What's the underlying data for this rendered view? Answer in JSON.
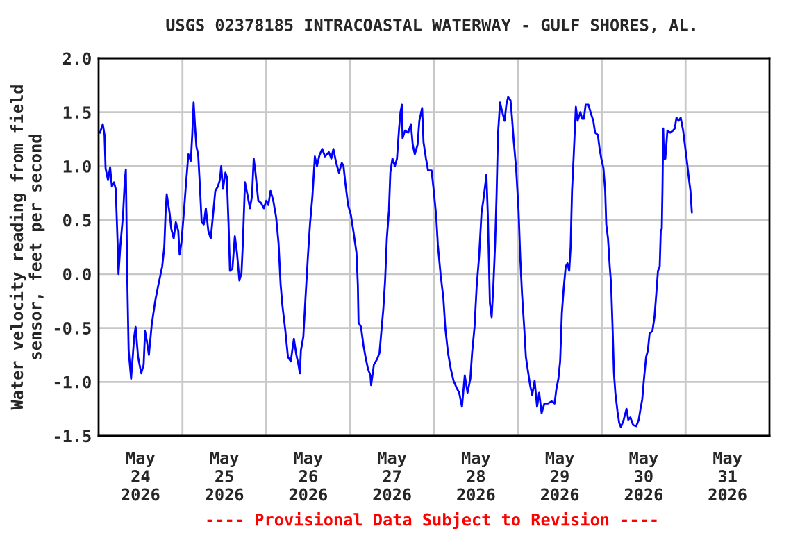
{
  "chart_data": {
    "type": "line",
    "title": "USGS 02378185 INTRACOASTAL WATERWAY - GULF SHORES, AL.",
    "ylabel": "Water velocity reading from field\nsensor, feet per second",
    "annotations": [
      "---- Provisional Data Subject to Revision ----"
    ],
    "xlim": [
      "2026-05-24T00:00",
      "2026-06-01T00:00"
    ],
    "xticks": [
      {
        "value": "2026-05-24T12:00",
        "label": "May\n24\n2026"
      },
      {
        "value": "2026-05-25T12:00",
        "label": "May\n25\n2026"
      },
      {
        "value": "2026-05-26T12:00",
        "label": "May\n26\n2026"
      },
      {
        "value": "2026-05-27T12:00",
        "label": "May\n27\n2026"
      },
      {
        "value": "2026-05-28T12:00",
        "label": "May\n28\n2026"
      },
      {
        "value": "2026-05-29T12:00",
        "label": "May\n29\n2026"
      },
      {
        "value": "2026-05-30T12:00",
        "label": "May\n30\n2026"
      },
      {
        "value": "2026-05-31T12:00",
        "label": "May\n31\n2026"
      },
      {
        "value": "2026-05-25T00:00",
        "label": null
      },
      {
        "value": "2026-05-26T00:00",
        "label": null
      },
      {
        "value": "2026-05-27T00:00",
        "label": null
      },
      {
        "value": "2026-05-28T00:00",
        "label": null
      },
      {
        "value": "2026-05-29T00:00",
        "label": null
      },
      {
        "value": "2026-05-30T00:00",
        "label": null
      },
      {
        "value": "2026-05-31T00:00",
        "label": null
      }
    ],
    "ylim": [
      -1.5,
      2.0
    ],
    "yticks": [
      {
        "value": -1.5,
        "label": "-1.5"
      },
      {
        "value": -1.0,
        "label": "-1.0"
      },
      {
        "value": -0.5,
        "label": "-0.5"
      },
      {
        "value": 0,
        "label": "0.0"
      },
      {
        "value": 0.5,
        "label": "0.5"
      },
      {
        "value": 1.0,
        "label": "1.0"
      },
      {
        "value": 1.5,
        "label": "1.5"
      },
      {
        "value": 2.0,
        "label": "2.0"
      }
    ],
    "grid": true,
    "legend": false,
    "marker": "none",
    "line_style": "solid",
    "series": [
      {
        "color": "#0000ff",
        "x": [
          "2026-05-24T00:24",
          "2026-05-24T01:12",
          "2026-05-24T01:42",
          "2026-05-24T02:00",
          "2026-05-24T02:42",
          "2026-05-24T03:18",
          "2026-05-24T03:48",
          "2026-05-24T04:24",
          "2026-05-24T04:54",
          "2026-05-24T05:24",
          "2026-05-24T05:42",
          "2026-05-24T06:12",
          "2026-05-24T07:00",
          "2026-05-24T07:30",
          "2026-05-24T07:48",
          "2026-05-24T08:12",
          "2026-05-24T08:36",
          "2026-05-24T09:18",
          "2026-05-24T10:12",
          "2026-05-24T10:36",
          "2026-05-24T11:18",
          "2026-05-24T12:12",
          "2026-05-24T12:54",
          "2026-05-24T13:18",
          "2026-05-24T13:54",
          "2026-05-24T14:24",
          "2026-05-24T15:12",
          "2026-05-24T16:12",
          "2026-05-24T17:06",
          "2026-05-24T18:12",
          "2026-05-24T18:48",
          "2026-05-24T19:12",
          "2026-05-24T19:30",
          "2026-05-24T20:18",
          "2026-05-24T20:48",
          "2026-05-24T21:30",
          "2026-05-24T22:06",
          "2026-05-24T22:48",
          "2026-05-24T23:12",
          "2026-05-24T23:42",
          "2026-05-25T00:30",
          "2026-05-25T01:00",
          "2026-05-25T01:42",
          "2026-05-25T02:24",
          "2026-05-25T02:48",
          "2026-05-25T03:12",
          "2026-05-25T03:36",
          "2026-05-25T04:00",
          "2026-05-25T04:30",
          "2026-05-25T05:00",
          "2026-05-25T05:30",
          "2026-05-25T06:06",
          "2026-05-25T06:42",
          "2026-05-25T07:24",
          "2026-05-25T08:06",
          "2026-05-25T08:42",
          "2026-05-25T09:24",
          "2026-05-25T10:06",
          "2026-05-25T10:42",
          "2026-05-25T11:06",
          "2026-05-25T11:36",
          "2026-05-25T12:18",
          "2026-05-25T12:42",
          "2026-05-25T13:12",
          "2026-05-25T13:36",
          "2026-05-25T14:18",
          "2026-05-25T15:00",
          "2026-05-25T15:36",
          "2026-05-25T16:18",
          "2026-05-25T16:54",
          "2026-05-25T17:18",
          "2026-05-25T17:54",
          "2026-05-25T18:42",
          "2026-05-25T19:18",
          "2026-05-25T19:54",
          "2026-05-25T20:24",
          "2026-05-25T20:54",
          "2026-05-25T21:18",
          "2026-05-25T21:42",
          "2026-05-25T22:30",
          "2026-05-25T23:18",
          "2026-05-26T00:00",
          "2026-05-26T00:36",
          "2026-05-26T01:12",
          "2026-05-26T02:00",
          "2026-05-26T02:48",
          "2026-05-26T03:30",
          "2026-05-26T04:06",
          "2026-05-26T04:36",
          "2026-05-26T05:24",
          "2026-05-26T06:12",
          "2026-05-26T07:00",
          "2026-05-26T07:54",
          "2026-05-26T08:36",
          "2026-05-26T09:12",
          "2026-05-26T09:36",
          "2026-05-26T09:54",
          "2026-05-26T10:36",
          "2026-05-26T11:12",
          "2026-05-26T11:54",
          "2026-05-26T12:30",
          "2026-05-26T13:12",
          "2026-05-26T13:54",
          "2026-05-26T14:30",
          "2026-05-26T15:12",
          "2026-05-26T16:00",
          "2026-05-26T16:48",
          "2026-05-26T17:54",
          "2026-05-26T18:36",
          "2026-05-26T19:12",
          "2026-05-26T20:00",
          "2026-05-26T20:48",
          "2026-05-26T21:36",
          "2026-05-26T22:06",
          "2026-05-26T22:36",
          "2026-05-26T23:24",
          "2026-05-27T00:12",
          "2026-05-27T01:00",
          "2026-05-27T01:48",
          "2026-05-27T02:12",
          "2026-05-27T02:24",
          "2026-05-27T03:06",
          "2026-05-27T03:48",
          "2026-05-27T04:24",
          "2026-05-27T05:06",
          "2026-05-27T05:48",
          "2026-05-27T06:00",
          "2026-05-27T06:48",
          "2026-05-27T07:42",
          "2026-05-27T08:24",
          "2026-05-27T08:48",
          "2026-05-27T09:30",
          "2026-05-27T10:00",
          "2026-05-27T10:30",
          "2026-05-27T11:06",
          "2026-05-27T11:30",
          "2026-05-27T12:06",
          "2026-05-27T12:48",
          "2026-05-27T13:24",
          "2026-05-27T14:00",
          "2026-05-27T14:24",
          "2026-05-27T14:48",
          "2026-05-27T15:00",
          "2026-05-27T15:42",
          "2026-05-27T16:36",
          "2026-05-27T17:24",
          "2026-05-27T17:54",
          "2026-05-27T18:30",
          "2026-05-27T19:18",
          "2026-05-27T19:48",
          "2026-05-27T20:36",
          "2026-05-27T21:00",
          "2026-05-27T21:42",
          "2026-05-27T22:18",
          "2026-05-27T23:18",
          "2026-05-27T23:48",
          "2026-05-28T00:36",
          "2026-05-28T01:06",
          "2026-05-28T01:54",
          "2026-05-28T02:42",
          "2026-05-28T03:12",
          "2026-05-28T04:00",
          "2026-05-28T04:48",
          "2026-05-28T05:36",
          "2026-05-28T06:24",
          "2026-05-28T07:12",
          "2026-05-28T08:00",
          "2026-05-28T08:48",
          "2026-05-28T09:36",
          "2026-05-28T10:24",
          "2026-05-28T10:54",
          "2026-05-28T11:36",
          "2026-05-28T12:12",
          "2026-05-28T12:54",
          "2026-05-28T13:36",
          "2026-05-28T14:06",
          "2026-05-28T14:36",
          "2026-05-28T15:00",
          "2026-05-28T15:24",
          "2026-05-28T16:00",
          "2026-05-28T16:30",
          "2026-05-28T17:00",
          "2026-05-28T17:30",
          "2026-05-28T17:54",
          "2026-05-28T18:18",
          "2026-05-28T18:54",
          "2026-05-28T19:24",
          "2026-05-28T20:12",
          "2026-05-28T20:42",
          "2026-05-28T21:12",
          "2026-05-28T21:54",
          "2026-05-28T22:18",
          "2026-05-28T22:48",
          "2026-05-28T23:30",
          "2026-05-29T00:12",
          "2026-05-29T00:42",
          "2026-05-29T01:12",
          "2026-05-29T01:48",
          "2026-05-29T02:18",
          "2026-05-29T02:48",
          "2026-05-29T03:30",
          "2026-05-29T04:06",
          "2026-05-29T04:48",
          "2026-05-29T05:30",
          "2026-05-29T06:06",
          "2026-05-29T06:48",
          "2026-05-29T07:36",
          "2026-05-29T08:36",
          "2026-05-29T09:42",
          "2026-05-29T10:30",
          "2026-05-29T11:00",
          "2026-05-29T11:36",
          "2026-05-29T12:06",
          "2026-05-29T12:36",
          "2026-05-29T13:06",
          "2026-05-29T13:42",
          "2026-05-29T14:12",
          "2026-05-29T14:42",
          "2026-05-29T15:06",
          "2026-05-29T15:30",
          "2026-05-29T16:00",
          "2026-05-29T16:36",
          "2026-05-29T17:06",
          "2026-05-29T17:54",
          "2026-05-29T18:24",
          "2026-05-29T18:54",
          "2026-05-29T19:24",
          "2026-05-29T20:12",
          "2026-05-29T20:48",
          "2026-05-29T21:36",
          "2026-05-29T22:06",
          "2026-05-29T22:54",
          "2026-05-29T23:24",
          "2026-05-30T00:00",
          "2026-05-30T00:30",
          "2026-05-30T01:00",
          "2026-05-30T01:18",
          "2026-05-30T01:48",
          "2026-05-30T02:18",
          "2026-05-30T02:42",
          "2026-05-30T03:06",
          "2026-05-30T03:30",
          "2026-05-30T03:54",
          "2026-05-30T04:30",
          "2026-05-30T05:00",
          "2026-05-30T05:30",
          "2026-05-30T06:18",
          "2026-05-30T07:06",
          "2026-05-30T07:36",
          "2026-05-30T08:12",
          "2026-05-30T09:00",
          "2026-05-30T09:54",
          "2026-05-30T10:36",
          "2026-05-30T11:06",
          "2026-05-30T11:36",
          "2026-05-30T12:06",
          "2026-05-30T12:42",
          "2026-05-30T13:12",
          "2026-05-30T13:42",
          "2026-05-30T14:30",
          "2026-05-30T15:06",
          "2026-05-30T15:36",
          "2026-05-30T16:06",
          "2026-05-30T16:36",
          "2026-05-30T16:54",
          "2026-05-30T17:12",
          "2026-05-30T17:24",
          "2026-05-30T17:36",
          "2026-05-30T17:48",
          "2026-05-30T18:12",
          "2026-05-30T18:48",
          "2026-05-30T19:36",
          "2026-05-30T20:24",
          "2026-05-30T20:54",
          "2026-05-30T21:24",
          "2026-05-30T22:00",
          "2026-05-30T22:36",
          "2026-05-30T23:18",
          "2026-05-30T23:48",
          "2026-05-31T00:18",
          "2026-05-31T00:54",
          "2026-05-31T01:24",
          "2026-05-31T01:48"
        ],
        "values": [
          1.31,
          1.39,
          1.29,
          0.98,
          0.87,
          0.99,
          0.81,
          0.85,
          0.79,
          0.33,
          0.0,
          0.25,
          0.55,
          0.87,
          0.97,
          -0.03,
          -0.71,
          -0.97,
          -0.58,
          -0.49,
          -0.77,
          -0.92,
          -0.84,
          -0.53,
          -0.64,
          -0.75,
          -0.47,
          -0.25,
          -0.1,
          0.07,
          0.25,
          0.59,
          0.74,
          0.57,
          0.42,
          0.33,
          0.48,
          0.4,
          0.18,
          0.29,
          0.61,
          0.83,
          1.11,
          1.05,
          1.29,
          1.59,
          1.37,
          1.18,
          1.11,
          0.81,
          0.48,
          0.46,
          0.61,
          0.4,
          0.33,
          0.53,
          0.77,
          0.81,
          0.87,
          1.0,
          0.79,
          0.94,
          0.9,
          0.46,
          0.03,
          0.05,
          0.35,
          0.2,
          -0.06,
          0.01,
          0.29,
          0.85,
          0.72,
          0.61,
          0.72,
          1.07,
          0.94,
          0.81,
          0.68,
          0.66,
          0.61,
          0.68,
          0.64,
          0.77,
          0.68,
          0.53,
          0.29,
          -0.1,
          -0.29,
          -0.51,
          -0.77,
          -0.81,
          -0.6,
          -0.75,
          -0.84,
          -0.92,
          -0.71,
          -0.58,
          -0.23,
          0.16,
          0.46,
          0.72,
          1.09,
          1.0,
          1.1,
          1.16,
          1.09,
          1.13,
          1.07,
          1.16,
          1.03,
          0.94,
          1.03,
          1.0,
          0.85,
          0.64,
          0.55,
          0.38,
          0.2,
          -0.1,
          -0.45,
          -0.49,
          -0.66,
          -0.77,
          -0.88,
          -0.94,
          -1.03,
          -0.84,
          -0.79,
          -0.73,
          -0.58,
          -0.32,
          -0.06,
          0.33,
          0.59,
          0.94,
          1.07,
          1.0,
          1.07,
          1.35,
          1.5,
          1.57,
          1.26,
          1.33,
          1.31,
          1.39,
          1.2,
          1.11,
          1.2,
          1.42,
          1.54,
          1.22,
          1.07,
          0.96,
          0.96,
          0.81,
          0.55,
          0.27,
          -0.01,
          -0.23,
          -0.49,
          -0.73,
          -0.88,
          -0.99,
          -1.05,
          -1.1,
          -1.23,
          -0.94,
          -1.1,
          -0.97,
          -0.73,
          -0.49,
          -0.12,
          0.16,
          0.57,
          0.68,
          0.81,
          0.92,
          0.55,
          -0.27,
          -0.4,
          -0.1,
          0.29,
          0.72,
          1.29,
          1.59,
          1.52,
          1.42,
          1.57,
          1.64,
          1.61,
          1.46,
          1.24,
          0.98,
          0.59,
          0.14,
          -0.19,
          -0.49,
          -0.77,
          -0.88,
          -1.03,
          -1.12,
          -0.99,
          -1.23,
          -1.1,
          -1.29,
          -1.2,
          -1.2,
          -1.18,
          -1.2,
          -1.07,
          -0.97,
          -0.81,
          -0.36,
          -0.14,
          0.07,
          0.1,
          0.03,
          0.25,
          0.77,
          1.11,
          1.55,
          1.42,
          1.5,
          1.44,
          1.44,
          1.57,
          1.57,
          1.5,
          1.42,
          1.31,
          1.29,
          1.16,
          1.05,
          0.98,
          0.77,
          0.46,
          0.33,
          0.07,
          -0.1,
          -0.49,
          -0.92,
          -1.1,
          -1.27,
          -1.38,
          -1.42,
          -1.35,
          -1.25,
          -1.35,
          -1.33,
          -1.4,
          -1.41,
          -1.35,
          -1.25,
          -1.16,
          -0.97,
          -0.77,
          -0.71,
          -0.55,
          -0.53,
          -0.4,
          -0.19,
          0.03,
          0.07,
          0.4,
          0.42,
          0.81,
          1.35,
          1.07,
          1.07,
          1.33,
          1.31,
          1.33,
          1.35,
          1.45,
          1.42,
          1.45,
          1.33,
          1.2,
          1.07,
          0.9,
          0.77,
          0.57
        ]
      }
    ]
  }
}
